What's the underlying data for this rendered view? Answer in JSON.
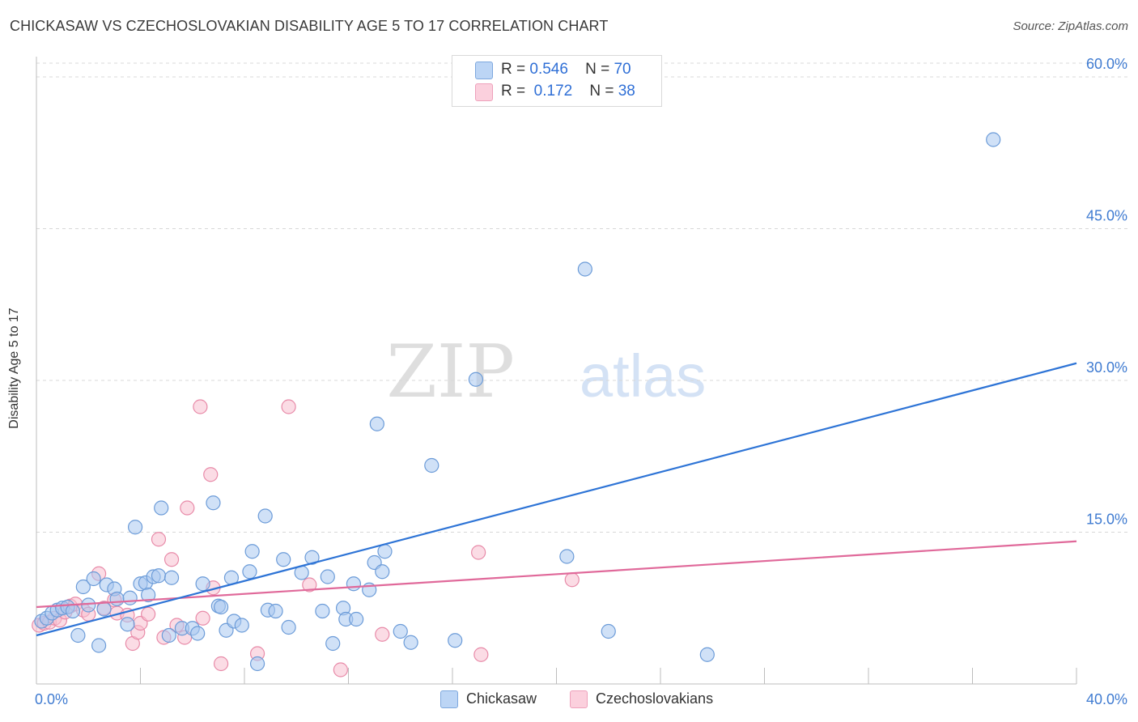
{
  "title": "CHICKASAW VS CZECHOSLOVAKIAN DISABILITY AGE 5 TO 17 CORRELATION CHART",
  "source": "Source: ZipAtlas.com",
  "watermark": {
    "zip": "ZIP",
    "atlas": "atlas"
  },
  "legend": [
    {
      "r_label": "R =",
      "r_value": "0.546",
      "n_label": "N =",
      "n_value": "70"
    },
    {
      "r_label": "R =",
      "r_value": "0.172",
      "n_label": "N =",
      "n_value": "38"
    }
  ],
  "colors": {
    "chickasaw_fill": "#a9c8f0",
    "chickasaw_stroke": "#6b9bd8",
    "chickasaw_line": "#2e74d6",
    "czech_fill": "#f7c0d0",
    "czech_stroke": "#e88aa8",
    "czech_line": "#e0699a",
    "tick_text": "#3f7bd1",
    "grid": "#d8d8d8"
  },
  "chart_data": {
    "type": "scatter",
    "title": "CHICKASAW VS CZECHOSLOVAKIAN DISABILITY AGE 5 TO 17 CORRELATION CHART",
    "xlabel": "",
    "ylabel": "Disability Age 5 to 17",
    "xlim": [
      0,
      40
    ],
    "ylim": [
      0,
      62
    ],
    "x_tick_labels": [
      "0.0%",
      "40.0%"
    ],
    "y_ticks": [
      15,
      30,
      45,
      60
    ],
    "y_tick_labels": [
      "15.0%",
      "30.0%",
      "45.0%",
      "60.0%"
    ],
    "grid": "horizontal dashed",
    "legend_position": "top-center",
    "series": [
      {
        "name": "Chickasaw",
        "R": 0.546,
        "N": 70,
        "trend": {
          "x": [
            0,
            40
          ],
          "y": [
            4.8,
            31.7
          ]
        },
        "points": [
          [
            0.2,
            6.2
          ],
          [
            0.4,
            6.5
          ],
          [
            0.6,
            7.0
          ],
          [
            0.8,
            7.3
          ],
          [
            1.0,
            7.5
          ],
          [
            1.2,
            7.6
          ],
          [
            1.4,
            7.2
          ],
          [
            1.6,
            4.8
          ],
          [
            1.8,
            9.6
          ],
          [
            2.0,
            7.8
          ],
          [
            2.2,
            10.4
          ],
          [
            2.4,
            3.8
          ],
          [
            2.6,
            7.4
          ],
          [
            2.7,
            9.8
          ],
          [
            3.0,
            9.4
          ],
          [
            3.1,
            8.4
          ],
          [
            3.5,
            5.9
          ],
          [
            3.6,
            8.5
          ],
          [
            3.8,
            15.5
          ],
          [
            4.0,
            9.9
          ],
          [
            4.2,
            10.0
          ],
          [
            4.3,
            8.8
          ],
          [
            4.5,
            10.6
          ],
          [
            4.7,
            10.7
          ],
          [
            4.8,
            17.4
          ],
          [
            5.2,
            10.5
          ],
          [
            5.1,
            4.8
          ],
          [
            5.6,
            5.5
          ],
          [
            6.0,
            5.5
          ],
          [
            6.2,
            5.0
          ],
          [
            6.4,
            9.9
          ],
          [
            6.8,
            17.9
          ],
          [
            7.0,
            7.7
          ],
          [
            7.1,
            7.6
          ],
          [
            7.3,
            5.3
          ],
          [
            7.5,
            10.5
          ],
          [
            7.6,
            6.2
          ],
          [
            7.9,
            5.8
          ],
          [
            8.2,
            11.1
          ],
          [
            8.3,
            13.1
          ],
          [
            8.5,
            2.0
          ],
          [
            8.8,
            16.6
          ],
          [
            8.9,
            7.3
          ],
          [
            9.2,
            7.2
          ],
          [
            9.5,
            12.3
          ],
          [
            9.7,
            5.6
          ],
          [
            10.2,
            11.0
          ],
          [
            10.6,
            12.5
          ],
          [
            11.0,
            7.2
          ],
          [
            11.2,
            10.6
          ],
          [
            11.4,
            4.0
          ],
          [
            11.8,
            7.5
          ],
          [
            11.9,
            6.4
          ],
          [
            12.2,
            9.9
          ],
          [
            12.3,
            6.4
          ],
          [
            12.8,
            9.3
          ],
          [
            13.0,
            12.0
          ],
          [
            13.1,
            25.7
          ],
          [
            13.3,
            11.1
          ],
          [
            13.4,
            13.1
          ],
          [
            14.4,
            4.1
          ],
          [
            15.2,
            21.6
          ],
          [
            16.1,
            4.3
          ],
          [
            16.9,
            30.1
          ],
          [
            20.4,
            12.6
          ],
          [
            21.1,
            41.0
          ],
          [
            22.0,
            5.2
          ],
          [
            25.8,
            2.9
          ],
          [
            36.8,
            53.8
          ],
          [
            14.0,
            5.2
          ]
        ]
      },
      {
        "name": "Czechoslovakians",
        "R": 0.172,
        "N": 38,
        "trend": {
          "x": [
            0,
            40
          ],
          "y": [
            7.6,
            14.1
          ]
        },
        "points": [
          [
            0.1,
            5.8
          ],
          [
            0.3,
            6.0
          ],
          [
            0.5,
            6.1
          ],
          [
            0.7,
            6.5
          ],
          [
            0.9,
            6.3
          ],
          [
            1.1,
            7.1
          ],
          [
            1.3,
            7.7
          ],
          [
            1.5,
            7.9
          ],
          [
            1.8,
            7.3
          ],
          [
            2.0,
            6.9
          ],
          [
            2.4,
            10.9
          ],
          [
            2.6,
            7.5
          ],
          [
            3.0,
            8.3
          ],
          [
            3.1,
            7.0
          ],
          [
            3.5,
            6.8
          ],
          [
            3.7,
            4.0
          ],
          [
            3.9,
            5.1
          ],
          [
            4.0,
            6.0
          ],
          [
            4.3,
            6.9
          ],
          [
            4.7,
            14.3
          ],
          [
            4.9,
            4.6
          ],
          [
            5.2,
            12.3
          ],
          [
            5.4,
            5.8
          ],
          [
            5.7,
            4.6
          ],
          [
            5.8,
            17.4
          ],
          [
            6.3,
            27.4
          ],
          [
            6.4,
            6.5
          ],
          [
            6.7,
            20.7
          ],
          [
            6.8,
            9.5
          ],
          [
            7.1,
            2.0
          ],
          [
            8.5,
            3.0
          ],
          [
            9.7,
            27.4
          ],
          [
            10.5,
            9.8
          ],
          [
            11.7,
            1.4
          ],
          [
            13.3,
            4.9
          ],
          [
            17.0,
            13.0
          ],
          [
            17.1,
            2.9
          ],
          [
            20.6,
            10.3
          ]
        ]
      }
    ]
  },
  "bottom_legend": [
    "Chickasaw",
    "Czechoslovakians"
  ]
}
